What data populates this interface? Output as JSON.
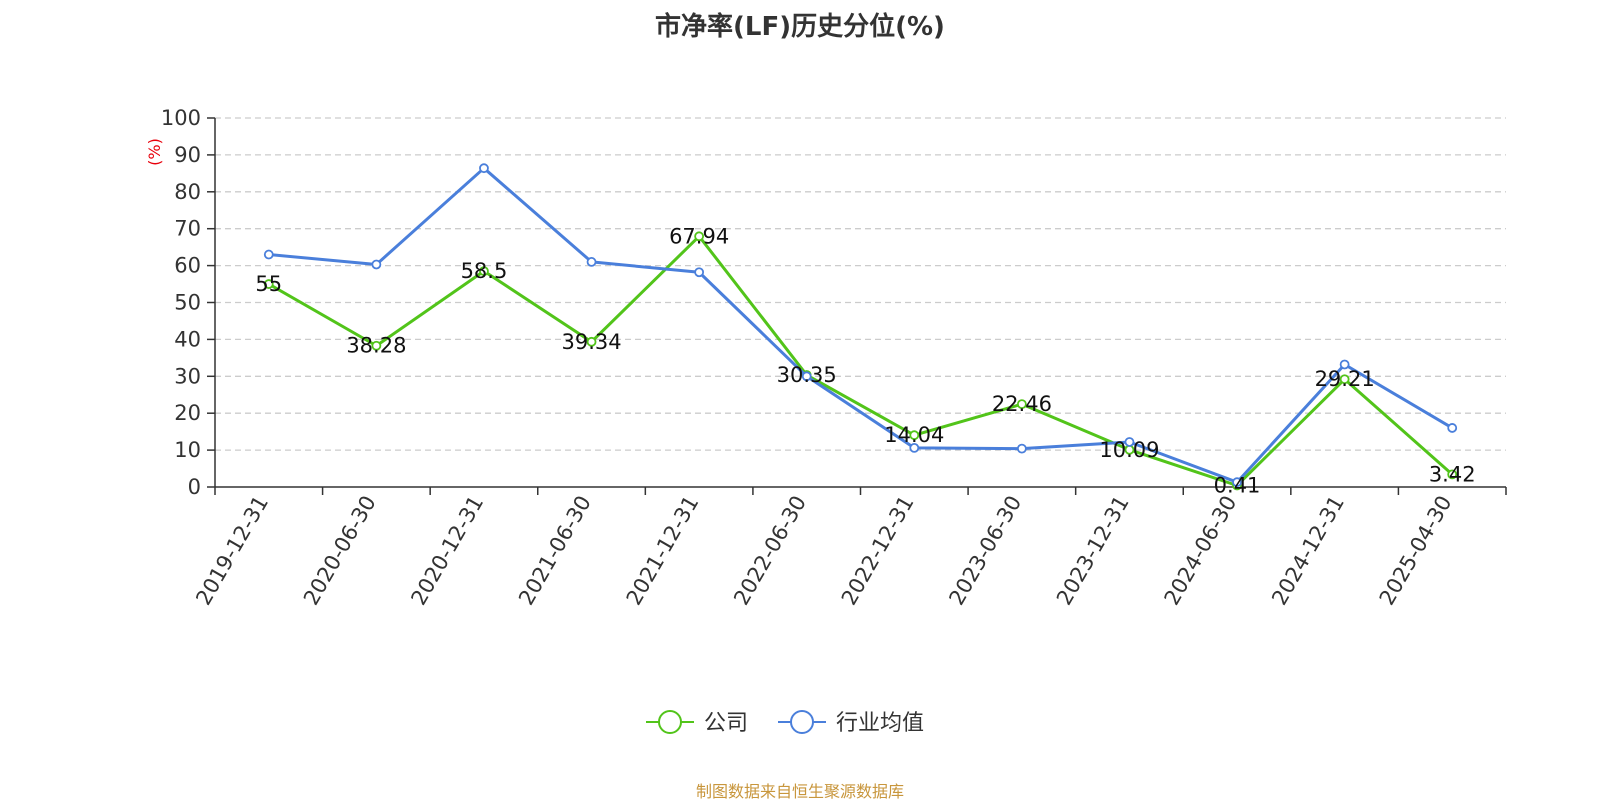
{
  "chart_data": {
    "type": "line",
    "title": "市净率(LF)历史分位(%)",
    "ylabel": "(%)",
    "xlabel": "",
    "categories": [
      "2019-12-31",
      "2020-06-30",
      "2020-12-31",
      "2021-06-30",
      "2021-12-31",
      "2022-06-30",
      "2022-12-31",
      "2023-06-30",
      "2023-12-31",
      "2024-06-30",
      "2024-12-31",
      "2025-04-30"
    ],
    "ylim": [
      0,
      100
    ],
    "yticks": [
      0,
      10,
      20,
      30,
      40,
      50,
      60,
      70,
      80,
      90,
      100
    ],
    "grid": true,
    "legend_position": "bottom-center",
    "series": [
      {
        "name": "公司",
        "color": "#52c41a",
        "labeled": true,
        "values": [
          55,
          38.28,
          58.5,
          39.34,
          67.94,
          30.35,
          14.04,
          22.46,
          10.09,
          0.41,
          29.21,
          3.42
        ]
      },
      {
        "name": "行业均值",
        "color": "#4a7fdb",
        "labeled": false,
        "values": [
          63,
          60.3,
          86.4,
          61,
          58.2,
          30,
          10.6,
          10.4,
          12.2,
          1.3,
          33.2,
          16
        ]
      }
    ]
  },
  "source": "制图数据来自恒生聚源数据库",
  "unit_color": "#e8000b",
  "source_color": "#c8963c"
}
